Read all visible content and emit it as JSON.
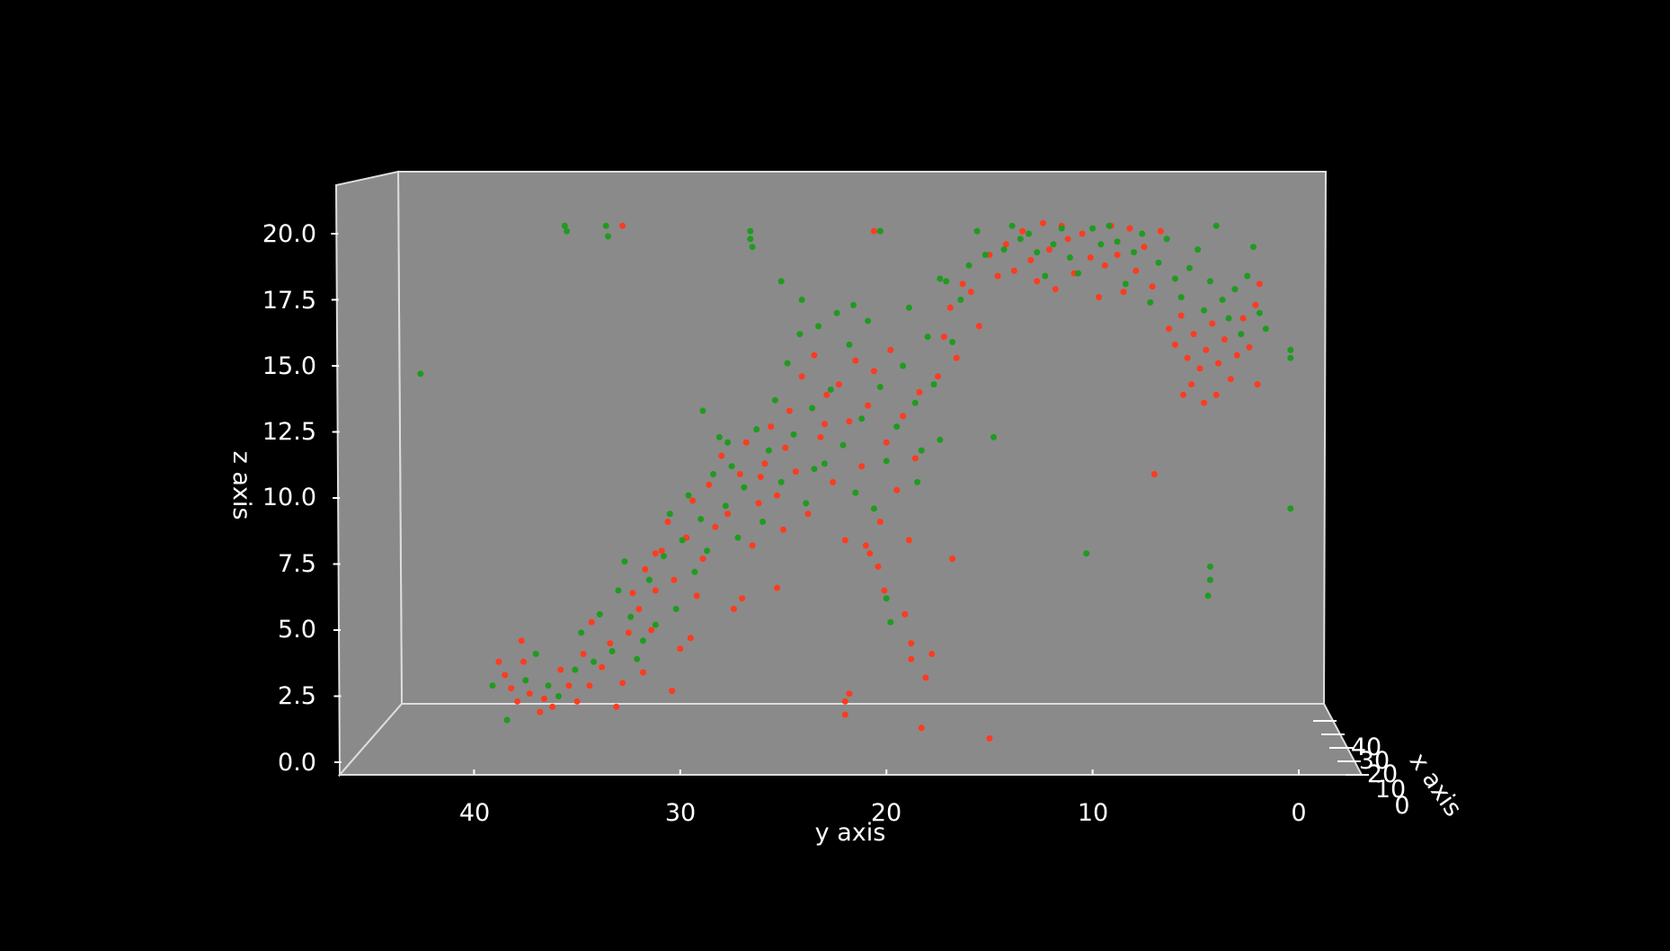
{
  "chart_data": {
    "type": "scatter",
    "title": "",
    "xlabel": "x axis",
    "ylabel": "y axis",
    "zlabel": "z axis",
    "background_color": "#000000",
    "pane_color": "#8a8a8a",
    "grid": false,
    "xlim": [
      0,
      45
    ],
    "ylim": [
      0,
      46
    ],
    "zlim": [
      0,
      21
    ],
    "x_ticks": [
      "0",
      "10",
      "20",
      "30",
      "40"
    ],
    "y_ticks": [
      "40",
      "30",
      "20",
      "10",
      "0"
    ],
    "z_ticks": [
      "0.0",
      "2.5",
      "5.0",
      "7.5",
      "10.0",
      "12.5",
      "15.0",
      "17.5",
      "20.0"
    ],
    "series": [
      {
        "color": "#ff3b1f",
        "points": [
          [
            38.8,
            3.8
          ],
          [
            38.5,
            3.3
          ],
          [
            38.2,
            2.8
          ],
          [
            37.9,
            2.3
          ],
          [
            37.6,
            3.8
          ],
          [
            37.3,
            2.6
          ],
          [
            36.8,
            1.9
          ],
          [
            36.2,
            2.1
          ],
          [
            35.8,
            3.5
          ],
          [
            35.4,
            2.9
          ],
          [
            35.0,
            2.3
          ],
          [
            34.7,
            4.1
          ],
          [
            34.3,
            5.3
          ],
          [
            33.8,
            3.6
          ],
          [
            33.4,
            4.5
          ],
          [
            33.1,
            2.1
          ],
          [
            32.8,
            3.0
          ],
          [
            32.5,
            4.9
          ],
          [
            32.3,
            6.4
          ],
          [
            32.0,
            5.8
          ],
          [
            31.7,
            7.3
          ],
          [
            31.4,
            5.0
          ],
          [
            31.2,
            6.5
          ],
          [
            30.9,
            8.0
          ],
          [
            30.6,
            9.1
          ],
          [
            30.3,
            6.9
          ],
          [
            30.0,
            4.3
          ],
          [
            29.7,
            8.5
          ],
          [
            29.4,
            9.9
          ],
          [
            29.2,
            6.3
          ],
          [
            28.9,
            7.7
          ],
          [
            28.6,
            10.5
          ],
          [
            28.3,
            8.9
          ],
          [
            28.0,
            11.6
          ],
          [
            27.7,
            9.4
          ],
          [
            27.4,
            5.8
          ],
          [
            27.1,
            10.9
          ],
          [
            26.8,
            12.1
          ],
          [
            26.5,
            8.2
          ],
          [
            26.2,
            9.8
          ],
          [
            25.9,
            11.3
          ],
          [
            25.6,
            12.7
          ],
          [
            25.3,
            10.1
          ],
          [
            25.0,
            8.8
          ],
          [
            24.7,
            13.3
          ],
          [
            24.4,
            11.0
          ],
          [
            24.1,
            14.6
          ],
          [
            23.8,
            9.4
          ],
          [
            23.5,
            15.4
          ],
          [
            23.2,
            12.3
          ],
          [
            22.9,
            13.9
          ],
          [
            22.6,
            10.6
          ],
          [
            22.3,
            14.3
          ],
          [
            22.0,
            8.4
          ],
          [
            21.8,
            12.9
          ],
          [
            21.5,
            15.2
          ],
          [
            21.2,
            11.2
          ],
          [
            20.9,
            13.5
          ],
          [
            20.6,
            14.8
          ],
          [
            20.3,
            9.1
          ],
          [
            20.0,
            12.1
          ],
          [
            19.8,
            15.6
          ],
          [
            19.5,
            10.3
          ],
          [
            19.2,
            13.1
          ],
          [
            18.9,
            8.4
          ],
          [
            18.6,
            11.5
          ],
          [
            18.4,
            14.0
          ],
          [
            18.1,
            3.2
          ],
          [
            17.8,
            4.1
          ],
          [
            17.5,
            14.6
          ],
          [
            17.2,
            16.1
          ],
          [
            16.9,
            17.2
          ],
          [
            16.6,
            15.3
          ],
          [
            16.3,
            18.1
          ],
          [
            15.9,
            17.8
          ],
          [
            15.5,
            16.5
          ],
          [
            15.0,
            19.2
          ],
          [
            14.6,
            18.4
          ],
          [
            14.2,
            19.6
          ],
          [
            13.8,
            18.6
          ],
          [
            13.4,
            20.1
          ],
          [
            13.0,
            19.0
          ],
          [
            12.7,
            18.2
          ],
          [
            12.4,
            20.4
          ],
          [
            12.1,
            19.4
          ],
          [
            11.8,
            17.9
          ],
          [
            11.5,
            20.3
          ],
          [
            11.2,
            19.8
          ],
          [
            10.9,
            18.5
          ],
          [
            10.5,
            20.0
          ],
          [
            10.1,
            19.1
          ],
          [
            9.7,
            17.6
          ],
          [
            9.4,
            18.8
          ],
          [
            9.1,
            20.3
          ],
          [
            8.8,
            19.2
          ],
          [
            8.5,
            17.8
          ],
          [
            8.2,
            20.2
          ],
          [
            7.9,
            18.6
          ],
          [
            7.5,
            19.5
          ],
          [
            7.1,
            18.0
          ],
          [
            6.7,
            20.1
          ],
          [
            6.3,
            16.4
          ],
          [
            6.0,
            15.8
          ],
          [
            5.7,
            16.9
          ],
          [
            5.4,
            15.3
          ],
          [
            5.1,
            16.2
          ],
          [
            4.8,
            14.9
          ],
          [
            4.5,
            15.6
          ],
          [
            4.2,
            16.6
          ],
          [
            3.9,
            15.1
          ],
          [
            3.6,
            16.0
          ],
          [
            3.3,
            14.5
          ],
          [
            3.0,
            15.4
          ],
          [
            2.7,
            16.8
          ],
          [
            2.4,
            15.7
          ],
          [
            2.1,
            17.3
          ],
          [
            1.9,
            18.1
          ],
          [
            5.6,
            13.9
          ],
          [
            5.2,
            14.3
          ],
          [
            4.6,
            13.6
          ],
          [
            4.0,
            13.9
          ],
          [
            2.0,
            14.3
          ],
          [
            7.0,
            10.9
          ],
          [
            15.0,
            0.9
          ],
          [
            18.3,
            1.3
          ],
          [
            22.0,
            1.8
          ],
          [
            22.0,
            2.3
          ],
          [
            21.8,
            2.6
          ],
          [
            18.8,
            3.9
          ],
          [
            18.8,
            4.5
          ],
          [
            19.1,
            5.6
          ],
          [
            20.4,
            7.4
          ],
          [
            20.8,
            7.9
          ],
          [
            21.0,
            8.2
          ],
          [
            20.1,
            6.5
          ],
          [
            32.8,
            20.3
          ],
          [
            20.6,
            20.1
          ],
          [
            16.8,
            7.7
          ],
          [
            25.3,
            6.6
          ],
          [
            27.0,
            6.2
          ],
          [
            29.5,
            4.7
          ],
          [
            30.4,
            2.7
          ],
          [
            31.8,
            3.4
          ],
          [
            34.4,
            2.9
          ],
          [
            36.6,
            2.4
          ],
          [
            37.7,
            4.6
          ],
          [
            31.2,
            7.9
          ],
          [
            26.1,
            10.8
          ],
          [
            24.9,
            11.9
          ],
          [
            23.0,
            12.8
          ]
        ]
      },
      {
        "color": "#1f9b1f",
        "points": [
          [
            42.6,
            14.7
          ],
          [
            39.1,
            2.9
          ],
          [
            38.4,
            1.6
          ],
          [
            37.5,
            3.1
          ],
          [
            37.0,
            4.1
          ],
          [
            36.4,
            2.9
          ],
          [
            35.9,
            2.5
          ],
          [
            35.6,
            20.3
          ],
          [
            35.5,
            20.1
          ],
          [
            35.1,
            3.5
          ],
          [
            34.8,
            4.9
          ],
          [
            34.2,
            3.8
          ],
          [
            33.9,
            5.6
          ],
          [
            33.6,
            20.3
          ],
          [
            33.5,
            19.9
          ],
          [
            33.3,
            4.2
          ],
          [
            33.0,
            6.5
          ],
          [
            32.7,
            7.6
          ],
          [
            32.4,
            5.5
          ],
          [
            32.1,
            3.9
          ],
          [
            31.8,
            4.6
          ],
          [
            31.5,
            6.9
          ],
          [
            31.2,
            5.2
          ],
          [
            30.8,
            7.8
          ],
          [
            30.5,
            9.4
          ],
          [
            30.2,
            5.8
          ],
          [
            29.9,
            8.4
          ],
          [
            29.6,
            10.1
          ],
          [
            29.3,
            7.2
          ],
          [
            29.0,
            9.2
          ],
          [
            28.7,
            8.0
          ],
          [
            28.4,
            10.9
          ],
          [
            28.1,
            12.3
          ],
          [
            27.8,
            9.7
          ],
          [
            27.5,
            11.2
          ],
          [
            27.2,
            8.5
          ],
          [
            26.9,
            10.4
          ],
          [
            26.6,
            20.1
          ],
          [
            26.5,
            19.5
          ],
          [
            26.3,
            12.6
          ],
          [
            26.0,
            9.1
          ],
          [
            25.7,
            11.8
          ],
          [
            25.4,
            13.7
          ],
          [
            25.1,
            10.6
          ],
          [
            24.8,
            15.1
          ],
          [
            24.5,
            12.4
          ],
          [
            24.2,
            16.2
          ],
          [
            23.9,
            9.8
          ],
          [
            23.6,
            13.4
          ],
          [
            23.3,
            16.5
          ],
          [
            23.0,
            11.3
          ],
          [
            22.7,
            14.1
          ],
          [
            22.4,
            17.0
          ],
          [
            22.1,
            12.0
          ],
          [
            21.8,
            15.8
          ],
          [
            21.5,
            10.2
          ],
          [
            21.2,
            13.0
          ],
          [
            20.9,
            16.7
          ],
          [
            20.6,
            9.6
          ],
          [
            20.3,
            14.2
          ],
          [
            20.0,
            6.2
          ],
          [
            19.8,
            5.3
          ],
          [
            19.5,
            12.7
          ],
          [
            19.2,
            15.0
          ],
          [
            18.9,
            17.2
          ],
          [
            18.6,
            13.6
          ],
          [
            18.3,
            11.8
          ],
          [
            18.0,
            16.1
          ],
          [
            17.7,
            14.3
          ],
          [
            17.4,
            12.2
          ],
          [
            17.1,
            18.2
          ],
          [
            16.8,
            15.9
          ],
          [
            16.4,
            17.5
          ],
          [
            16.0,
            18.8
          ],
          [
            15.6,
            20.1
          ],
          [
            15.2,
            19.2
          ],
          [
            14.8,
            12.3
          ],
          [
            14.3,
            19.4
          ],
          [
            13.9,
            20.3
          ],
          [
            13.5,
            19.8
          ],
          [
            13.1,
            20.0
          ],
          [
            12.7,
            19.3
          ],
          [
            12.3,
            18.4
          ],
          [
            11.9,
            19.6
          ],
          [
            11.5,
            20.2
          ],
          [
            11.1,
            19.1
          ],
          [
            10.7,
            18.5
          ],
          [
            10.3,
            7.9
          ],
          [
            10.0,
            20.2
          ],
          [
            9.6,
            19.6
          ],
          [
            9.2,
            20.3
          ],
          [
            8.8,
            19.7
          ],
          [
            8.4,
            18.1
          ],
          [
            8.0,
            19.3
          ],
          [
            7.6,
            20.0
          ],
          [
            7.2,
            17.4
          ],
          [
            6.8,
            18.9
          ],
          [
            6.4,
            19.8
          ],
          [
            6.0,
            18.3
          ],
          [
            5.7,
            17.6
          ],
          [
            5.3,
            18.7
          ],
          [
            4.9,
            19.4
          ],
          [
            4.6,
            17.1
          ],
          [
            4.3,
            18.2
          ],
          [
            4.0,
            20.3
          ],
          [
            3.7,
            17.5
          ],
          [
            3.4,
            16.8
          ],
          [
            3.1,
            17.9
          ],
          [
            2.8,
            16.2
          ],
          [
            2.5,
            18.4
          ],
          [
            2.2,
            19.5
          ],
          [
            1.9,
            17.0
          ],
          [
            1.6,
            16.4
          ],
          [
            0.4,
            15.6
          ],
          [
            0.4,
            15.3
          ],
          [
            0.4,
            9.6
          ],
          [
            4.3,
            7.4
          ],
          [
            4.3,
            6.9
          ],
          [
            4.4,
            6.3
          ],
          [
            20.3,
            20.1
          ],
          [
            17.4,
            18.3
          ],
          [
            26.6,
            19.8
          ],
          [
            25.1,
            18.2
          ],
          [
            24.1,
            17.5
          ],
          [
            21.6,
            17.3
          ],
          [
            28.9,
            13.3
          ],
          [
            27.7,
            12.1
          ],
          [
            23.5,
            11.1
          ],
          [
            20.0,
            11.4
          ],
          [
            18.5,
            10.6
          ]
        ]
      }
    ]
  }
}
